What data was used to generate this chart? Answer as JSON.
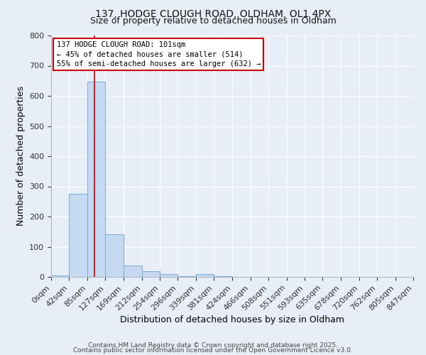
{
  "title_line1": "137, HODGE CLOUGH ROAD, OLDHAM, OL1 4PX",
  "title_line2": "Size of property relative to detached houses in Oldham",
  "xlabel": "Distribution of detached houses by size in Oldham",
  "ylabel": "Number of detached properties",
  "bin_edges": [
    0,
    42,
    85,
    127,
    169,
    212,
    254,
    296,
    339,
    381,
    424,
    466,
    508,
    551,
    593,
    635,
    678,
    720,
    762,
    805,
    847
  ],
  "bin_labels": [
    "0sqm",
    "42sqm",
    "85sqm",
    "127sqm",
    "169sqm",
    "212sqm",
    "254sqm",
    "296sqm",
    "339sqm",
    "381sqm",
    "424sqm",
    "466sqm",
    "508sqm",
    "551sqm",
    "593sqm",
    "635sqm",
    "678sqm",
    "720sqm",
    "762sqm",
    "805sqm",
    "847sqm"
  ],
  "counts": [
    5,
    275,
    648,
    142,
    37,
    20,
    10,
    3,
    10,
    3,
    1,
    0,
    0,
    0,
    0,
    0,
    0,
    0,
    0,
    1
  ],
  "bar_color": "#c5d9f0",
  "bar_edge_color": "#7aadd4",
  "vline_x": 101,
  "vline_color": "#cc0000",
  "ylim": [
    0,
    800
  ],
  "yticks": [
    0,
    100,
    200,
    300,
    400,
    500,
    600,
    700,
    800
  ],
  "annotation_text": "137 HODGE CLOUGH ROAD: 101sqm\n← 45% of detached houses are smaller (514)\n55% of semi-detached houses are larger (632) →",
  "annotation_box_color": "#ffffff",
  "annotation_box_edge_color": "#cc0000",
  "footer_line1": "Contains HM Land Registry data © Crown copyright and database right 2025.",
  "footer_line2": "Contains public sector information licensed under the Open Government Licence v3.0.",
  "background_color": "#e8eef8",
  "grid_color": "#ffffff",
  "spine_color": "#b0b8c8"
}
